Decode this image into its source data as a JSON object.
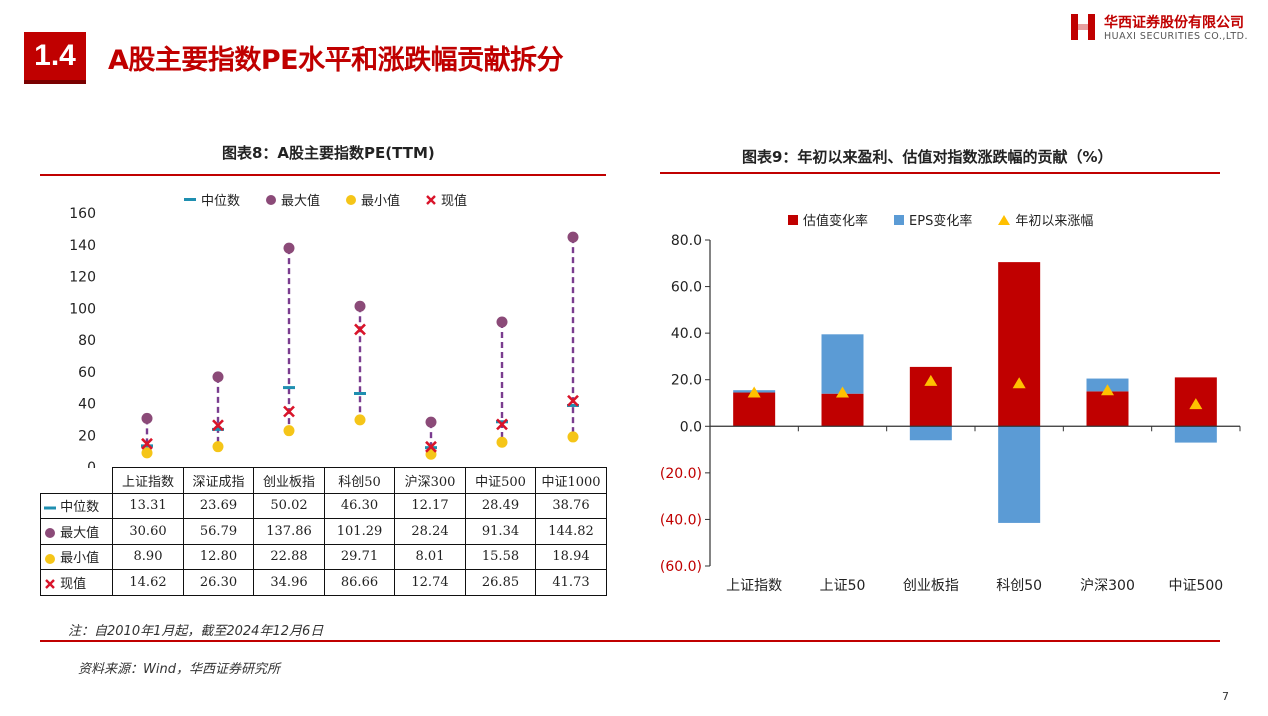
{
  "header": {
    "badge": "1.4",
    "title": "A股主要指数PE水平和涨跌幅贡献拆分",
    "logo_cn": "华西证券股份有限公司",
    "logo_en": "HUAXI SECURITIES CO.,LTD."
  },
  "figure8": {
    "title": "图表8：A股主要指数PE(TTM)",
    "row_labels": [
      "中位数",
      "最大值",
      "最小值",
      "现值"
    ]
  },
  "figure9": {
    "title": "图表9：年初以来盈利、估值对指数涨跌幅的贡献（%）"
  },
  "footer": {
    "note": "注：自2010年1月起，截至2024年12月6日",
    "source": "资料来源：Wind，华西证券研究所",
    "page": "7"
  },
  "colors": {
    "brand_red": "#c00000",
    "median": "#1f8fb0",
    "max": "#8b4a78",
    "min": "#f5c518",
    "current": "#d9142a",
    "range_line": "#7a3c8f",
    "valuation": "#c00000",
    "eps": "#5b9bd5",
    "ytd": "#ffc000"
  },
  "chart_data": [
    {
      "type": "scatter",
      "title": "A股主要指数PE(TTM)",
      "categories": [
        "上证指数",
        "深证成指",
        "创业板指",
        "科创50",
        "沪深300",
        "中证500",
        "中证1000"
      ],
      "series": [
        {
          "name": "中位数",
          "values": [
            13.31,
            23.69,
            50.02,
            46.3,
            12.17,
            28.49,
            38.76
          ]
        },
        {
          "name": "最大值",
          "values": [
            30.6,
            56.79,
            137.86,
            101.29,
            28.24,
            91.34,
            144.82
          ]
        },
        {
          "name": "最小值",
          "values": [
            8.9,
            12.8,
            22.88,
            29.71,
            8.01,
            15.58,
            18.94
          ]
        },
        {
          "name": "现值",
          "values": [
            14.62,
            26.3,
            34.96,
            86.66,
            12.74,
            26.85,
            41.73
          ]
        }
      ],
      "value_text": [
        [
          "13.31",
          "23.69",
          "50.02",
          "46.30",
          "12.17",
          "28.49",
          "38.76"
        ],
        [
          "30.60",
          "56.79",
          "137.86",
          "101.29",
          "28.24",
          "91.34",
          "144.82"
        ],
        [
          "8.90",
          "12.80",
          "22.88",
          "29.71",
          "8.01",
          "15.58",
          "18.94"
        ],
        [
          "14.62",
          "26.30",
          "34.96",
          "86.66",
          "12.74",
          "26.85",
          "41.73"
        ]
      ],
      "ylim": [
        0,
        160
      ],
      "yticks": [
        "0",
        "20",
        "40",
        "60",
        "80",
        "100",
        "120",
        "140",
        "160"
      ],
      "legend": "top",
      "grid": false
    },
    {
      "type": "bar",
      "title": "年初以来盈利、估值对指数涨跌幅的贡献（%）",
      "categories": [
        "上证指数",
        "上证50",
        "创业板指",
        "科创50",
        "沪深300",
        "中证500"
      ],
      "stacked": true,
      "series": [
        {
          "name": "估值变化率",
          "values": [
            14.5,
            14.0,
            25.5,
            70.5,
            15.0,
            21.0
          ]
        },
        {
          "name": "EPS变化率",
          "values": [
            1.0,
            25.5,
            -6.0,
            -41.5,
            5.5,
            -7.0
          ]
        },
        {
          "name": "年初以来涨幅",
          "values": [
            14.5,
            14.5,
            19.5,
            18.5,
            15.5,
            9.5
          ]
        }
      ],
      "ylim": [
        -60,
        80
      ],
      "yticks": [
        "80.0",
        "60.0",
        "40.0",
        "20.0",
        "0.0",
        "(20.0)",
        "(40.0)",
        "(60.0)"
      ],
      "ytick_values": [
        80,
        60,
        40,
        20,
        0,
        -20,
        -40,
        -60
      ],
      "legend": "top",
      "grid": false
    }
  ]
}
